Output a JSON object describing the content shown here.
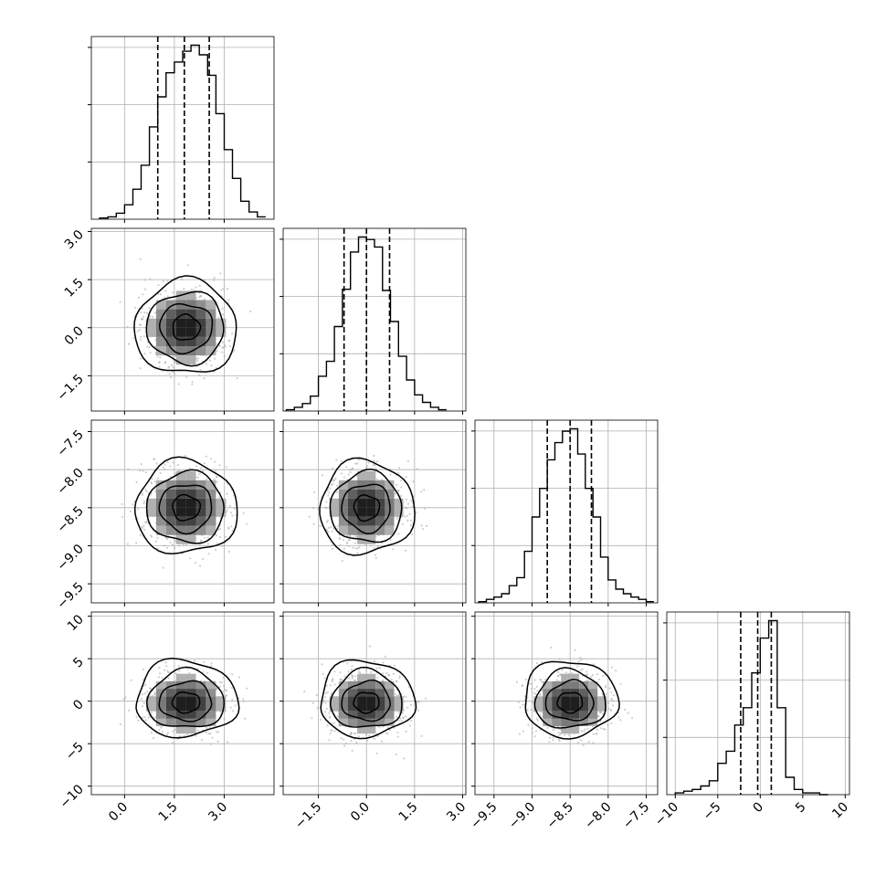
{
  "chart_data": {
    "type": "corner",
    "title": "",
    "parameters": [
      {
        "label": "",
        "range": [
          -1.0,
          4.5
        ],
        "ticks": [
          0.0,
          1.5,
          3.0
        ],
        "tick_labels": [
          "0.0",
          "1.5",
          "3.0"
        ],
        "mean": 1.85,
        "sigma": 0.75,
        "quantiles": [
          1.0,
          1.8,
          2.55
        ]
      },
      {
        "label": "",
        "range": [
          -2.6,
          3.1
        ],
        "ticks": [
          -1.5,
          0.0,
          1.5,
          3.0
        ],
        "tick_labels": [
          "−1.5",
          "0.0",
          "1.5",
          "3.0"
        ],
        "mean": 0.0,
        "sigma": 0.72,
        "quantiles": [
          -0.7,
          0.0,
          0.72
        ]
      },
      {
        "label": "",
        "range": [
          -9.75,
          -7.35
        ],
        "ticks": [
          -9.5,
          -9.0,
          -8.5,
          -8.0,
          -7.5
        ],
        "tick_labels": [
          "−9.5",
          "−9.0",
          "−8.5",
          "−8.0",
          "−7.5"
        ],
        "mean": -8.5,
        "sigma": 0.3,
        "quantiles": [
          -8.8,
          -8.5,
          -8.22
        ]
      },
      {
        "label": "",
        "range": [
          -11.0,
          10.5
        ],
        "ticks": [
          -10,
          -5,
          0,
          5,
          10
        ],
        "tick_labels": [
          "−10",
          "−5",
          "0",
          "5",
          "10"
        ],
        "mean": -0.3,
        "sigma": 2.2,
        "quantiles": [
          -2.3,
          -0.3,
          1.3
        ]
      }
    ],
    "histograms": [
      {
        "param": 0,
        "bins": [
          -0.75,
          -0.5,
          -0.25,
          0.0,
          0.25,
          0.5,
          0.75,
          1.0,
          1.25,
          1.5,
          1.75,
          2.0,
          2.25,
          2.5,
          2.75,
          3.0,
          3.25,
          3.5,
          3.75,
          4.0
        ],
        "counts": [
          1,
          2,
          5,
          12,
          25,
          45,
          77,
          102,
          122,
          131,
          140,
          145,
          137,
          120,
          88,
          58,
          34,
          15,
          6,
          2
        ]
      },
      {
        "param": 1,
        "bins": [
          -2.5,
          -2.25,
          -2.0,
          -1.75,
          -1.5,
          -1.25,
          -1.0,
          -0.75,
          -0.5,
          -0.25,
          0.0,
          0.25,
          0.5,
          0.75,
          1.0,
          1.25,
          1.5,
          1.75,
          2.0,
          2.25
        ],
        "counts": [
          1,
          3,
          6,
          12,
          28,
          40,
          68,
          98,
          128,
          140,
          138,
          132,
          97,
          72,
          44,
          25,
          13,
          7,
          3,
          1
        ]
      },
      {
        "param": 2,
        "bins": [
          -9.7,
          -9.6,
          -9.5,
          -9.4,
          -9.3,
          -9.2,
          -9.1,
          -9.0,
          -8.9,
          -8.8,
          -8.7,
          -8.6,
          -8.5,
          -8.4,
          -8.3,
          -8.2,
          -8.1,
          -8.0,
          -7.9,
          -7.8,
          -7.7,
          -7.6,
          -7.5
        ],
        "counts": [
          1,
          3,
          5,
          8,
          15,
          22,
          45,
          75,
          100,
          125,
          140,
          150,
          152,
          130,
          100,
          75,
          40,
          20,
          12,
          8,
          5,
          3,
          1
        ]
      },
      {
        "param": 3,
        "bins": [
          -10,
          -9,
          -8,
          -7,
          -6,
          -5,
          -4,
          -3,
          -2,
          -1,
          0,
          1,
          2,
          3,
          4,
          5,
          6,
          7
        ],
        "counts": [
          1,
          2,
          3,
          5,
          8,
          18,
          25,
          40,
          50,
          70,
          90,
          100,
          50,
          10,
          3,
          1,
          1,
          0
        ]
      }
    ],
    "contour_levels": [
      "0.5σ",
      "1σ",
      "1.5σ",
      "2σ"
    ],
    "scatter_pairs": [
      [
        1,
        0
      ],
      [
        2,
        0
      ],
      [
        2,
        1
      ],
      [
        3,
        0
      ],
      [
        3,
        1
      ],
      [
        3,
        2
      ]
    ],
    "grid": true,
    "colors": {
      "line": "#000000",
      "points": "#a8a8a8",
      "grid": "#b0b0b0"
    }
  }
}
